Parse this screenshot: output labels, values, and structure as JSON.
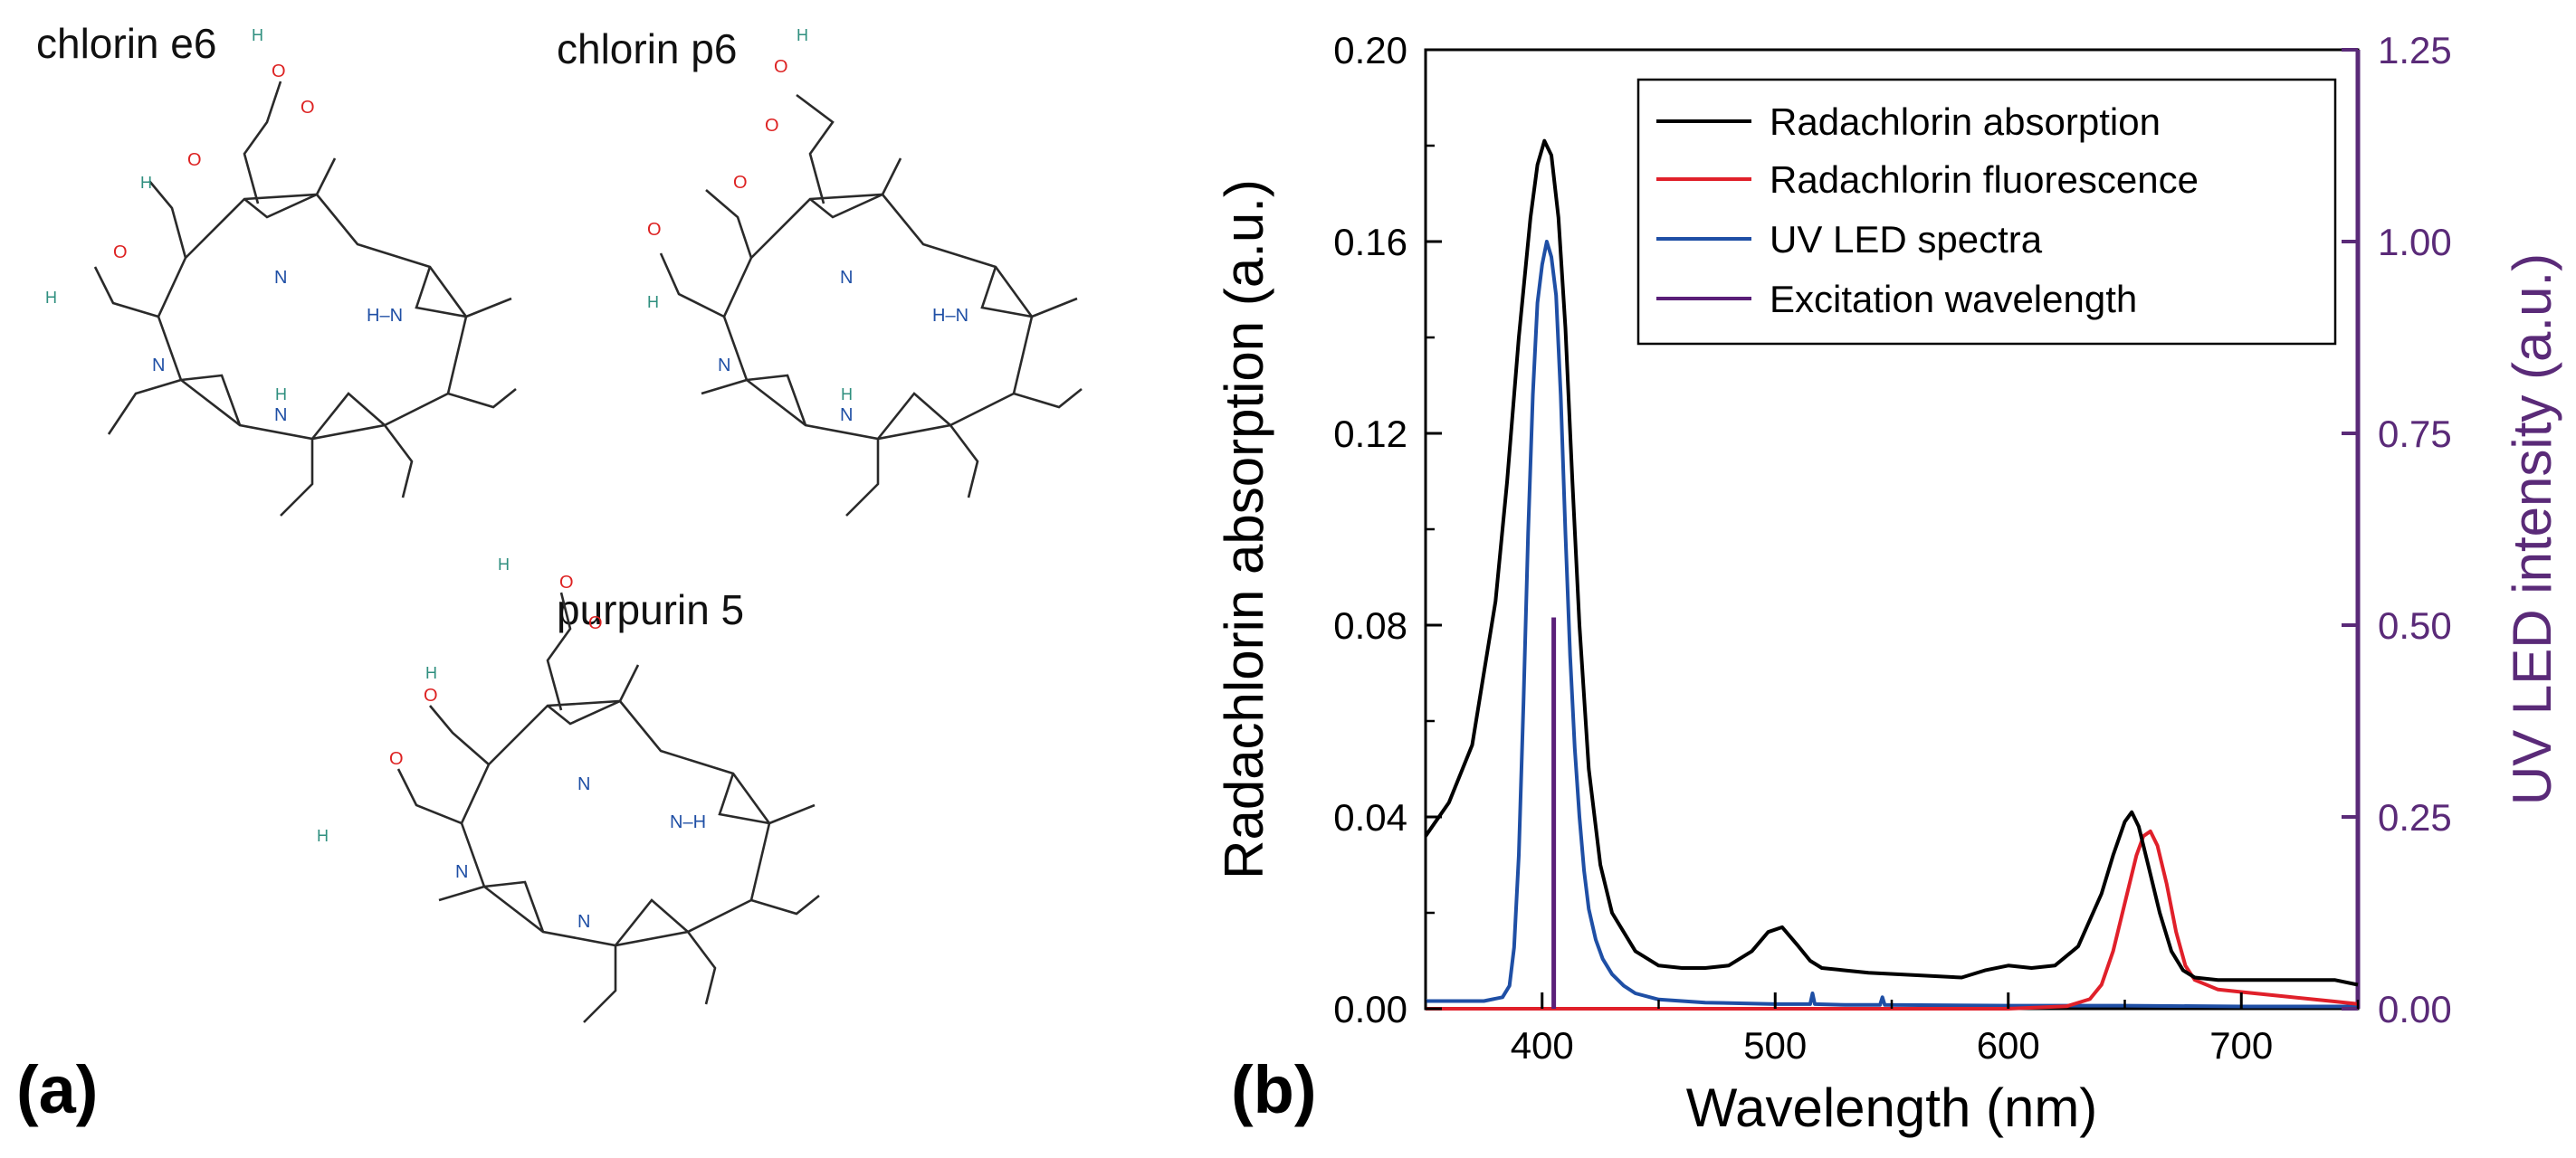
{
  "panel_a": {
    "letter": "(a)",
    "molecules": [
      {
        "name": "chlorin e6"
      },
      {
        "name": "chlorin p6"
      },
      {
        "name": "purpurin 5"
      }
    ],
    "atoms": {
      "nitrogen": "N",
      "oxygen": "O",
      "hydrogen": "H",
      "nh": "N–H",
      "hn": "H–N"
    }
  },
  "panel_b": {
    "letter": "(b)"
  },
  "colors": {
    "absorption": "#000000",
    "fluorescence": "#e0202a",
    "uv_led": "#1f4fa5",
    "excitation": "#5a1f78",
    "right_axis": "#5a2a78"
  },
  "chart_data": {
    "type": "line",
    "xlabel": "Wavelength (nm)",
    "ylabel": "Radachlorin absorption (a.u.)",
    "y2label": "UV LED intensity (a.u.)",
    "xlim": [
      350,
      750
    ],
    "ylim": [
      0,
      0.2
    ],
    "y2lim": [
      0,
      1.25
    ],
    "x_ticks": [
      "400",
      "500",
      "600",
      "700"
    ],
    "x_tick_values": [
      400,
      500,
      600,
      700
    ],
    "y_ticks": [
      "0.00",
      "0.04",
      "0.08",
      "0.12",
      "0.16",
      "0.20"
    ],
    "y_tick_values": [
      0,
      0.04,
      0.08,
      0.12,
      0.16,
      0.2
    ],
    "y2_ticks": [
      "0.00",
      "0.25",
      "0.50",
      "0.75",
      "1.00",
      "1.25"
    ],
    "y2_tick_values": [
      0,
      0.25,
      0.5,
      0.75,
      1.0,
      1.25
    ],
    "legend_position": "top-right",
    "series": [
      {
        "name": "Radachlorin absorption",
        "axis": "left",
        "x": [
          350,
          360,
          370,
          380,
          385,
          390,
          395,
          398,
          401,
          404,
          407,
          410,
          413,
          416,
          420,
          425,
          430,
          440,
          450,
          460,
          470,
          480,
          490,
          497,
          503,
          510,
          515,
          520,
          530,
          540,
          560,
          580,
          590,
          600,
          610,
          620,
          630,
          640,
          645,
          650,
          653,
          656,
          660,
          665,
          670,
          675,
          680,
          690,
          700,
          720,
          740,
          750
        ],
        "y": [
          0.036,
          0.043,
          0.055,
          0.085,
          0.11,
          0.14,
          0.165,
          0.176,
          0.181,
          0.178,
          0.165,
          0.142,
          0.11,
          0.08,
          0.05,
          0.03,
          0.02,
          0.012,
          0.009,
          0.0085,
          0.0085,
          0.009,
          0.012,
          0.016,
          0.017,
          0.013,
          0.01,
          0.0085,
          0.008,
          0.0075,
          0.007,
          0.0065,
          0.008,
          0.009,
          0.0085,
          0.009,
          0.013,
          0.024,
          0.032,
          0.039,
          0.041,
          0.038,
          0.03,
          0.02,
          0.012,
          0.008,
          0.0065,
          0.006,
          0.006,
          0.006,
          0.006,
          0.005
        ]
      },
      {
        "name": "Radachlorin fluorescence",
        "axis": "left",
        "x": [
          350,
          400,
          500,
          600,
          625,
          635,
          640,
          645,
          650,
          655,
          658,
          661,
          664,
          668,
          672,
          676,
          680,
          690,
          700,
          720,
          740,
          750
        ],
        "y": [
          0.0,
          0.0,
          0.0,
          0.0,
          0.0005,
          0.002,
          0.005,
          0.012,
          0.022,
          0.032,
          0.036,
          0.037,
          0.034,
          0.026,
          0.016,
          0.009,
          0.006,
          0.004,
          0.0035,
          0.0025,
          0.0015,
          0.001
        ]
      },
      {
        "name": "UV LED spectra",
        "axis": "right",
        "x": [
          350,
          375,
          383,
          386,
          388,
          390,
          392,
          394,
          396,
          398,
          400,
          402,
          404,
          406,
          408,
          410,
          412,
          414,
          416,
          418,
          420,
          423,
          426,
          430,
          435,
          440,
          450,
          470,
          500,
          515,
          516,
          517,
          530,
          545,
          546,
          547,
          600,
          650,
          700,
          750
        ],
        "y": [
          0.01,
          0.01,
          0.015,
          0.03,
          0.08,
          0.2,
          0.4,
          0.62,
          0.8,
          0.92,
          0.97,
          1.0,
          0.98,
          0.93,
          0.8,
          0.62,
          0.46,
          0.34,
          0.25,
          0.18,
          0.13,
          0.09,
          0.065,
          0.045,
          0.03,
          0.02,
          0.012,
          0.008,
          0.006,
          0.006,
          0.02,
          0.006,
          0.005,
          0.005,
          0.015,
          0.005,
          0.004,
          0.004,
          0.003,
          0.003
        ]
      },
      {
        "name": "Excitation wavelength",
        "axis": "right",
        "x": [
          405,
          405
        ],
        "y": [
          0.0,
          0.51
        ]
      }
    ]
  }
}
